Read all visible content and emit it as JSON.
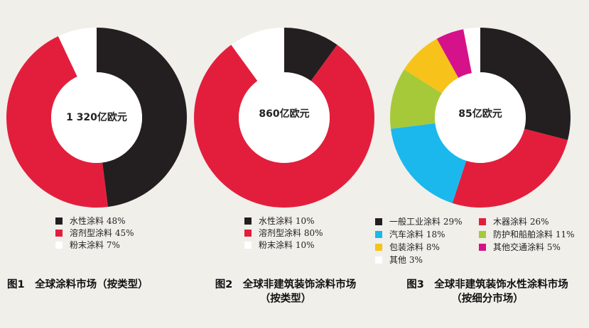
{
  "chart_data": [
    {
      "type": "pie",
      "center_label": "1 320亿欧元",
      "categories": [
        "水性涂料",
        "溶剂型涂料",
        "粉末涂料"
      ],
      "values": [
        48,
        45,
        7
      ],
      "colors": [
        "#231f20",
        "#e31e3c",
        "#ffffff"
      ],
      "legend": [
        "水性涂料 48%",
        "溶剂型涂料 45%",
        "粉末涂料 7%"
      ],
      "caption": [
        "图1　全球涂料市场（按类型）"
      ]
    },
    {
      "type": "pie",
      "center_label": "860亿欧元",
      "categories": [
        "水性涂料",
        "溶剂型涂料",
        "粉末涂料"
      ],
      "values": [
        10,
        80,
        10
      ],
      "colors": [
        "#231f20",
        "#e31e3c",
        "#ffffff"
      ],
      "legend": [
        "水性涂料 10%",
        "溶剂型涂料 80%",
        "粉末涂料 10%"
      ],
      "caption": [
        "图2　全球非建筑装饰涂料市场",
        "（按类型）"
      ]
    },
    {
      "type": "pie",
      "center_label": "85亿欧元",
      "categories": [
        "一般工业涂料",
        "木器涂料",
        "汽车涂料",
        "防护和船舶涂料",
        "包装涂料",
        "其他交通涂料",
        "其他"
      ],
      "values": [
        29,
        26,
        18,
        11,
        8,
        5,
        3
      ],
      "colors": [
        "#231f20",
        "#e31e3c",
        "#1ab8ec",
        "#a6c93a",
        "#f7c31a",
        "#d6128a",
        "#ffffff"
      ],
      "legend": [
        "一般工业涂料 29%",
        "木器涂料 26%",
        "汽车涂料 18%",
        "防护和船舶涂料 11%",
        "包装涂料 8%",
        "其他交通涂料 5%",
        "其他 3%"
      ],
      "caption": [
        "图3　全球非建筑装饰水性涂料市场",
        "（按细分市场）"
      ]
    }
  ]
}
